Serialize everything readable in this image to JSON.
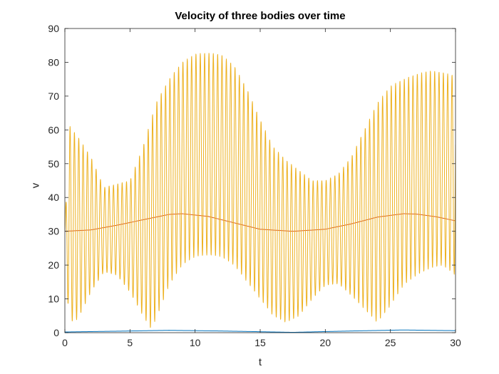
{
  "chart_data": {
    "type": "line",
    "title": "Velocity of three bodies over time",
    "xlabel": "t",
    "ylabel": "v",
    "xlim": [
      0,
      30
    ],
    "ylim": [
      0,
      90
    ],
    "x_ticks": [
      "0",
      "5",
      "10",
      "15",
      "20",
      "25",
      "30"
    ],
    "y_ticks": [
      "0",
      "10",
      "20",
      "30",
      "40",
      "50",
      "60",
      "70",
      "80",
      "90"
    ],
    "grid": false,
    "legend": "none",
    "series": [
      {
        "color": "#0072BD",
        "style": "smooth",
        "points": [
          [
            0,
            0.2
          ],
          [
            5,
            0.5
          ],
          [
            8,
            0.7
          ],
          [
            12,
            0.5
          ],
          [
            17.5,
            0.1
          ],
          [
            22,
            0.5
          ],
          [
            26,
            0.8
          ],
          [
            30,
            0.6
          ]
        ]
      },
      {
        "color": "#D95319",
        "style": "smooth",
        "points": [
          [
            0,
            30
          ],
          [
            2,
            30.4
          ],
          [
            4,
            31.8
          ],
          [
            6,
            33.4
          ],
          [
            8,
            35
          ],
          [
            9,
            35.2
          ],
          [
            11,
            34.4
          ],
          [
            13,
            32.5
          ],
          [
            15,
            30.6
          ],
          [
            17.5,
            30
          ],
          [
            20,
            30.6
          ],
          [
            22,
            32.2
          ],
          [
            24,
            34.2
          ],
          [
            26,
            35.2
          ],
          [
            27,
            35.1
          ],
          [
            28.5,
            34.3
          ],
          [
            30,
            33.1
          ]
        ]
      },
      {
        "color": "#EDB120",
        "style": "oscillating",
        "cycles_per_unit": 3.0,
        "upper_envelope": [
          [
            0,
            30
          ],
          [
            0.3,
            61.5
          ],
          [
            1,
            58
          ],
          [
            2,
            52
          ],
          [
            3,
            43
          ],
          [
            4,
            44
          ],
          [
            5,
            45
          ],
          [
            6,
            55
          ],
          [
            7,
            68
          ],
          [
            8,
            75
          ],
          [
            9,
            80
          ],
          [
            10,
            82.5
          ],
          [
            11,
            82.8
          ],
          [
            12,
            82.3
          ],
          [
            13,
            79
          ],
          [
            14,
            72
          ],
          [
            15,
            63
          ],
          [
            16,
            55
          ],
          [
            17,
            51
          ],
          [
            18,
            48
          ],
          [
            19,
            45
          ],
          [
            20,
            45
          ],
          [
            21,
            47
          ],
          [
            22,
            52
          ],
          [
            23,
            60
          ],
          [
            24,
            68
          ],
          [
            25,
            73
          ],
          [
            26,
            75
          ],
          [
            27,
            76.5
          ],
          [
            28,
            77.5
          ],
          [
            29,
            77
          ],
          [
            30,
            76
          ]
        ],
        "lower_envelope": [
          [
            0,
            30
          ],
          [
            0.3,
            3
          ],
          [
            1,
            4
          ],
          [
            2,
            12
          ],
          [
            3,
            18
          ],
          [
            4,
            17
          ],
          [
            5,
            12
          ],
          [
            6,
            5
          ],
          [
            6.6,
            1.2
          ],
          [
            7,
            4
          ],
          [
            8,
            14
          ],
          [
            9,
            20
          ],
          [
            10,
            22.5
          ],
          [
            11,
            23
          ],
          [
            12,
            22.5
          ],
          [
            13,
            20
          ],
          [
            14,
            15
          ],
          [
            15,
            10
          ],
          [
            16,
            5
          ],
          [
            17,
            3
          ],
          [
            18,
            5
          ],
          [
            19,
            10
          ],
          [
            20,
            14
          ],
          [
            21,
            14.5
          ],
          [
            22,
            11
          ],
          [
            23,
            7
          ],
          [
            24,
            3
          ],
          [
            25,
            8
          ],
          [
            26,
            14
          ],
          [
            27,
            17
          ],
          [
            28,
            19
          ],
          [
            29,
            20
          ],
          [
            30,
            17
          ]
        ]
      }
    ]
  }
}
